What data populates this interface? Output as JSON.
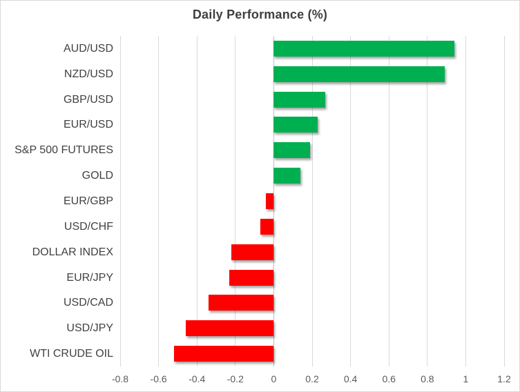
{
  "chart_data": {
    "type": "bar",
    "orientation": "horizontal",
    "title": "Daily Performance (%)",
    "categories": [
      "AUD/USD",
      "NZD/USD",
      "GBP/USD",
      "EUR/USD",
      "S&P 500 FUTURES",
      "GOLD",
      "EUR/GBP",
      "USD/CHF",
      "DOLLAR INDEX",
      "EUR/JPY",
      "USD/CAD",
      "USD/JPY",
      "WTI CRUDE OIL"
    ],
    "values": [
      0.94,
      0.89,
      0.27,
      0.23,
      0.19,
      0.14,
      -0.04,
      -0.07,
      -0.22,
      -0.23,
      -0.34,
      -0.46,
      -0.52
    ],
    "xlabel": "",
    "ylabel": "",
    "xlim": [
      -0.8,
      1.2
    ],
    "xticks": [
      -0.8,
      -0.6,
      -0.4,
      -0.2,
      0,
      0.2,
      0.4,
      0.6,
      0.8,
      1,
      1.2
    ],
    "xtick_labels": [
      "-0.8",
      "-0.6",
      "-0.4",
      "-0.2",
      "0",
      "0.2",
      "0.4",
      "0.6",
      "0.8",
      "1",
      "1.2"
    ],
    "grid": true,
    "legend": "none",
    "colors": {
      "positive": "#00B050",
      "negative": "#FF0000",
      "gridline": "#D9D9D9",
      "zero_line": "#BFBFBF",
      "title_text": "#3F3F3F",
      "category_text": "#404040",
      "tick_text": "#595959",
      "background": "#FFFFFF",
      "border": "#D9D9D9"
    }
  }
}
